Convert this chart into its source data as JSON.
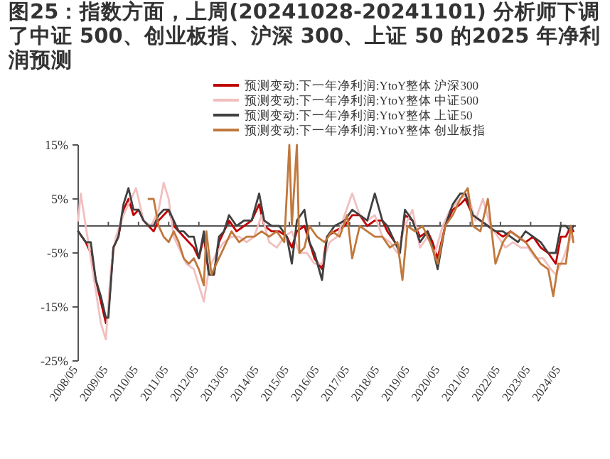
{
  "chart_data": {
    "type": "line",
    "title": "图25：指数方面，上周(20241028-20241101) 分析师下调了中证 500、创业板指、沪深 300、上证 50 的2025 年净利润预测",
    "xlim": [
      "2008-05",
      "2024-11"
    ],
    "xticks": [
      {
        "value": "2008-05",
        "label": "2008/05"
      },
      {
        "value": "2009-05",
        "label": "2009/05"
      },
      {
        "value": "2010-05",
        "label": "2010/05"
      },
      {
        "value": "2011-05",
        "label": "2011/05"
      },
      {
        "value": "2012-05",
        "label": "2012/05"
      },
      {
        "value": "2013-05",
        "label": "2013/05"
      },
      {
        "value": "2014-05",
        "label": "2014/05"
      },
      {
        "value": "2015-05",
        "label": "2015/05"
      },
      {
        "value": "2016-05",
        "label": "2016/05"
      },
      {
        "value": "2017-05",
        "label": "2017/05"
      },
      {
        "value": "2018-05",
        "label": "2018/05"
      },
      {
        "value": "2019-05",
        "label": "2019/05"
      },
      {
        "value": "2020-05",
        "label": "2020/05"
      },
      {
        "value": "2021-05",
        "label": "2021/05"
      },
      {
        "value": "2022-05",
        "label": "2022/05"
      },
      {
        "value": "2023-05",
        "label": "2023/05"
      },
      {
        "value": "2024-05",
        "label": "2024/05"
      }
    ],
    "ylim": [
      -25,
      15
    ],
    "yticks": [
      {
        "value": -25,
        "label": "-25%"
      },
      {
        "value": -15,
        "label": "-15%"
      },
      {
        "value": -5,
        "label": "-5%"
      },
      {
        "value": 5,
        "label": "5%"
      },
      {
        "value": 15,
        "label": "15%"
      }
    ],
    "legend": "top",
    "series": [
      {
        "name": "预测变动:下一年净利润:YtoY整体 沪深300",
        "color": "#c00000",
        "x": [
          "2008-05",
          "2008-08",
          "2008-10",
          "2008-12",
          "2009-02",
          "2009-04",
          "2009-05",
          "2009-07",
          "2009-09",
          "2009-11",
          "2010-01",
          "2010-03",
          "2010-05",
          "2010-07",
          "2010-09",
          "2010-11",
          "2011-01",
          "2011-03",
          "2011-05",
          "2011-07",
          "2011-09",
          "2011-11",
          "2012-01",
          "2012-03",
          "2012-05",
          "2012-07",
          "2012-09",
          "2012-11",
          "2013-01",
          "2013-03",
          "2013-05",
          "2013-08",
          "2013-11",
          "2014-02",
          "2014-05",
          "2014-07",
          "2014-10",
          "2015-01",
          "2015-04",
          "2015-06",
          "2015-08",
          "2015-11",
          "2016-01",
          "2016-03",
          "2016-06",
          "2016-08",
          "2016-11",
          "2017-03",
          "2017-06",
          "2017-09",
          "2017-12",
          "2018-03",
          "2018-06",
          "2018-08",
          "2018-11",
          "2019-01",
          "2019-03",
          "2019-06",
          "2019-09",
          "2019-12",
          "2020-02",
          "2020-04",
          "2020-07",
          "2020-10",
          "2021-01",
          "2021-03",
          "2021-06",
          "2021-09",
          "2021-12",
          "2022-03",
          "2022-06",
          "2022-09",
          "2022-12",
          "2023-03",
          "2023-06",
          "2023-09",
          "2023-12",
          "2024-03",
          "2024-05",
          "2024-07",
          "2024-09",
          "2024-10"
        ],
        "values": [
          -1,
          -3,
          -5,
          -10,
          -14,
          -18,
          -16,
          -4,
          -2,
          3,
          5,
          2,
          3,
          1,
          0,
          -1,
          1,
          2,
          3,
          0,
          -1,
          -2,
          -3,
          -4,
          -6,
          -2,
          -9,
          -9,
          -3,
          -1,
          1,
          -1,
          0,
          1,
          4,
          0,
          -1,
          -1,
          -2,
          -4,
          -1,
          0,
          -3,
          -6,
          -8,
          -2,
          -1,
          0,
          2,
          2,
          0,
          1,
          1,
          -1,
          -3,
          -4,
          2,
          1,
          -2,
          -1,
          -3,
          -6,
          0,
          3,
          4,
          5,
          2,
          1,
          0,
          -1,
          -2,
          -1,
          -2,
          -3,
          -2,
          -4,
          -5,
          -7,
          -2,
          -2,
          0,
          -1
        ]
      },
      {
        "name": "预测变动:下一年净利润:YtoY整体 中证500",
        "color": "#f2bfbf",
        "x": [
          "2008-05",
          "2008-06",
          "2008-08",
          "2008-10",
          "2008-12",
          "2009-02",
          "2009-04",
          "2009-06",
          "2009-08",
          "2009-11",
          "2010-01",
          "2010-04",
          "2010-07",
          "2010-10",
          "2011-01",
          "2011-03",
          "2011-05",
          "2011-07",
          "2011-09",
          "2011-12",
          "2012-03",
          "2012-05",
          "2012-07",
          "2012-09",
          "2012-12",
          "2013-03",
          "2013-06",
          "2013-09",
          "2013-12",
          "2014-03",
          "2014-06",
          "2014-09",
          "2014-12",
          "2015-03",
          "2015-06",
          "2015-09",
          "2015-12",
          "2016-03",
          "2016-06",
          "2016-09",
          "2016-12",
          "2017-03",
          "2017-06",
          "2017-09",
          "2017-12",
          "2018-03",
          "2018-06",
          "2018-09",
          "2018-12",
          "2019-03",
          "2019-06",
          "2019-09",
          "2019-12",
          "2020-03",
          "2020-06",
          "2020-09",
          "2021-01",
          "2021-04",
          "2021-07",
          "2021-10",
          "2022-01",
          "2022-04",
          "2022-07",
          "2022-10",
          "2023-01",
          "2023-04",
          "2023-07",
          "2023-10",
          "2024-01",
          "2024-03",
          "2024-06",
          "2024-09",
          "2024-10"
        ],
        "values": [
          1,
          6,
          0,
          -6,
          -12,
          -18,
          -21,
          -8,
          -2,
          2,
          4,
          7,
          1,
          0,
          3,
          8,
          5,
          -2,
          -4,
          -7,
          -8,
          -11,
          -14,
          -8,
          -5,
          -3,
          -2,
          -2,
          -3,
          -2,
          2,
          -3,
          -4,
          -2,
          -1,
          -5,
          -5,
          -7,
          -7,
          -3,
          -2,
          2,
          6,
          2,
          1,
          2,
          -2,
          -3,
          -5,
          0,
          3,
          -4,
          -2,
          -5,
          0,
          3,
          5,
          6,
          1,
          5,
          0,
          -2,
          -4,
          -3,
          -4,
          -4,
          -6,
          -6,
          -8,
          -9,
          -6,
          -2,
          -2
        ]
      },
      {
        "name": "预测变动:下一年净利润:YtoY整体 上证50",
        "color": "#404040",
        "x": [
          "2008-05",
          "2008-08",
          "2008-10",
          "2008-12",
          "2009-02",
          "2009-04",
          "2009-05",
          "2009-07",
          "2009-09",
          "2009-11",
          "2010-01",
          "2010-03",
          "2010-05",
          "2010-07",
          "2010-09",
          "2010-11",
          "2011-01",
          "2011-03",
          "2011-05",
          "2011-07",
          "2011-09",
          "2011-11",
          "2012-01",
          "2012-03",
          "2012-05",
          "2012-07",
          "2012-09",
          "2012-11",
          "2013-01",
          "2013-03",
          "2013-05",
          "2013-08",
          "2013-11",
          "2014-02",
          "2014-05",
          "2014-07",
          "2014-10",
          "2015-01",
          "2015-04",
          "2015-06",
          "2015-08",
          "2015-11",
          "2016-01",
          "2016-03",
          "2016-06",
          "2016-08",
          "2016-11",
          "2017-03",
          "2017-06",
          "2017-09",
          "2017-12",
          "2018-03",
          "2018-06",
          "2018-08",
          "2018-11",
          "2019-01",
          "2019-03",
          "2019-06",
          "2019-09",
          "2019-12",
          "2020-02",
          "2020-04",
          "2020-07",
          "2020-10",
          "2021-01",
          "2021-03",
          "2021-06",
          "2021-09",
          "2021-12",
          "2022-03",
          "2022-06",
          "2022-09",
          "2022-12",
          "2023-03",
          "2023-06",
          "2023-09",
          "2023-12",
          "2024-03",
          "2024-05",
          "2024-07",
          "2024-09",
          "2024-10"
        ],
        "values": [
          -1,
          -3,
          -3,
          -10,
          -13,
          -17,
          -17,
          -4,
          -2,
          4,
          7,
          3,
          3,
          1,
          0,
          0,
          2,
          3,
          3,
          1,
          -1,
          -1,
          -2,
          -2,
          -6,
          -1,
          -9,
          -9,
          -2,
          -1,
          2,
          0,
          1,
          1,
          6,
          1,
          0,
          0,
          -2,
          -7,
          1,
          3,
          -3,
          -5,
          -10,
          -2,
          0,
          1,
          3,
          2,
          1,
          6,
          1,
          0,
          -3,
          -5,
          3,
          1,
          -3,
          -1,
          -4,
          -8,
          0,
          4,
          6,
          6,
          2,
          1,
          0,
          -1,
          -1,
          -2,
          -3,
          -1,
          -2,
          -3,
          -5,
          -5,
          0,
          0,
          -1,
          0
        ]
      },
      {
        "name": "预测变动:下一年净利润:YtoY整体 创业板指",
        "color": "#c0783c",
        "x": [
          "2010-09",
          "2010-11",
          "2011-01",
          "2011-03",
          "2011-05",
          "2011-07",
          "2011-09",
          "2011-11",
          "2012-01",
          "2012-03",
          "2012-05",
          "2012-07",
          "2012-08",
          "2012-10",
          "2012-12",
          "2013-03",
          "2013-06",
          "2013-09",
          "2013-12",
          "2014-03",
          "2014-06",
          "2014-09",
          "2014-12",
          "2015-03",
          "2015-05",
          "2015-06",
          "2015-08",
          "2015-09",
          "2015-11",
          "2016-01",
          "2016-04",
          "2016-07",
          "2016-10",
          "2017-01",
          "2017-04",
          "2017-06",
          "2017-09",
          "2017-12",
          "2018-03",
          "2018-06",
          "2018-09",
          "2018-12",
          "2019-02",
          "2019-04",
          "2019-07",
          "2019-10",
          "2020-01",
          "2020-04",
          "2020-07",
          "2020-10",
          "2021-01",
          "2021-04",
          "2021-06",
          "2021-09",
          "2021-12",
          "2022-03",
          "2022-06",
          "2022-09",
          "2022-12",
          "2023-03",
          "2023-06",
          "2023-09",
          "2023-12",
          "2024-02",
          "2024-04",
          "2024-07",
          "2024-09",
          "2024-10"
        ],
        "values": [
          5,
          5,
          0,
          -2,
          -3,
          -1,
          -3,
          -6,
          -7,
          -6,
          -8,
          -11,
          -1,
          -9,
          -7,
          -4,
          -1,
          -3,
          -2,
          -2,
          -1,
          -2,
          -1,
          -3,
          15,
          0,
          15,
          -5,
          -4,
          0,
          -2,
          -3,
          -1,
          -2,
          2,
          -6,
          0,
          -1,
          -2,
          -2,
          -4,
          -3,
          -10,
          0,
          -1,
          0,
          -3,
          -7,
          0,
          2,
          5,
          7,
          0,
          -1,
          5,
          -7,
          -3,
          -1,
          -2,
          -3,
          -5,
          -7,
          -8,
          -13,
          -7,
          -7,
          0,
          -3
        ]
      }
    ]
  }
}
